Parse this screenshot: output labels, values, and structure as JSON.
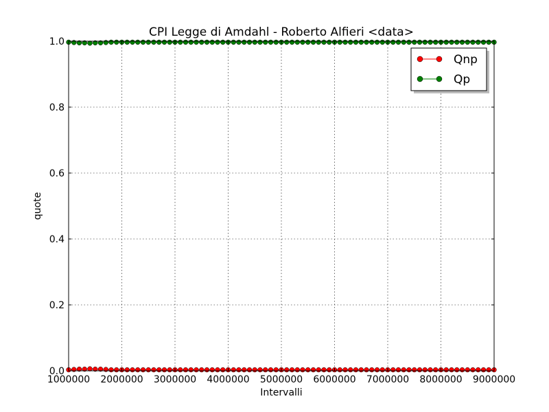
{
  "chart_data": {
    "type": "line",
    "title": "CPI  Legge di Amdahl  -   Roberto Alfieri  <data>",
    "xlabel": "Intervalli",
    "ylabel": "quote",
    "xlim": [
      1000000,
      9000000
    ],
    "ylim": [
      0.0,
      1.0
    ],
    "x_ticks": [
      1000000,
      2000000,
      3000000,
      4000000,
      5000000,
      6000000,
      7000000,
      8000000,
      9000000
    ],
    "x_tick_labels": [
      "1000000",
      "2000000",
      "3000000",
      "4000000",
      "5000000",
      "6000000",
      "7000000",
      "8000000",
      "9000000"
    ],
    "y_ticks": [
      0.0,
      0.2,
      0.4,
      0.6,
      0.8,
      1.0
    ],
    "y_tick_labels": [
      "0.0",
      "0.2",
      "0.4",
      "0.6",
      "0.8",
      "1.0"
    ],
    "grid": true,
    "legend_position": "top-right",
    "x": [
      1000000,
      1100000,
      1200000,
      1300000,
      1400000,
      1500000,
      1600000,
      1700000,
      1800000,
      1900000,
      2000000,
      2100000,
      2200000,
      2300000,
      2400000,
      2500000,
      2600000,
      2700000,
      2800000,
      2900000,
      3000000,
      3100000,
      3200000,
      3300000,
      3400000,
      3500000,
      3600000,
      3700000,
      3800000,
      3900000,
      4000000,
      4100000,
      4200000,
      4300000,
      4400000,
      4500000,
      4600000,
      4700000,
      4800000,
      4900000,
      5000000,
      5100000,
      5200000,
      5300000,
      5400000,
      5500000,
      5600000,
      5700000,
      5800000,
      5900000,
      6000000,
      6100000,
      6200000,
      6300000,
      6400000,
      6500000,
      6600000,
      6700000,
      6800000,
      6900000,
      7000000,
      7100000,
      7200000,
      7300000,
      7400000,
      7500000,
      7600000,
      7700000,
      7800000,
      7900000,
      8000000,
      8100000,
      8200000,
      8300000,
      8400000,
      8500000,
      8600000,
      8700000,
      8800000,
      8900000,
      9000000
    ],
    "series": [
      {
        "name": "Qnp",
        "color": "#ff0000",
        "values": [
          0.003,
          0.004,
          0.005,
          0.005,
          0.006,
          0.005,
          0.005,
          0.004,
          0.003,
          0.003,
          0.003,
          0.003,
          0.003,
          0.003,
          0.003,
          0.003,
          0.003,
          0.003,
          0.003,
          0.003,
          0.003,
          0.003,
          0.003,
          0.003,
          0.003,
          0.003,
          0.003,
          0.003,
          0.003,
          0.003,
          0.003,
          0.003,
          0.003,
          0.003,
          0.003,
          0.003,
          0.003,
          0.003,
          0.003,
          0.003,
          0.003,
          0.003,
          0.003,
          0.003,
          0.003,
          0.003,
          0.003,
          0.003,
          0.003,
          0.003,
          0.003,
          0.003,
          0.003,
          0.003,
          0.003,
          0.003,
          0.003,
          0.003,
          0.003,
          0.003,
          0.003,
          0.003,
          0.003,
          0.003,
          0.003,
          0.003,
          0.003,
          0.003,
          0.003,
          0.003,
          0.003,
          0.003,
          0.003,
          0.003,
          0.003,
          0.003,
          0.003,
          0.003,
          0.003,
          0.003,
          0.003
        ]
      },
      {
        "name": "Qp",
        "color": "#008000",
        "values": [
          0.997,
          0.996,
          0.995,
          0.995,
          0.994,
          0.995,
          0.995,
          0.996,
          0.997,
          0.997,
          0.997,
          0.997,
          0.997,
          0.997,
          0.997,
          0.997,
          0.997,
          0.997,
          0.997,
          0.997,
          0.997,
          0.997,
          0.997,
          0.997,
          0.997,
          0.997,
          0.997,
          0.997,
          0.997,
          0.997,
          0.997,
          0.997,
          0.997,
          0.997,
          0.997,
          0.997,
          0.997,
          0.997,
          0.997,
          0.997,
          0.997,
          0.997,
          0.997,
          0.997,
          0.997,
          0.997,
          0.997,
          0.997,
          0.997,
          0.997,
          0.997,
          0.997,
          0.997,
          0.997,
          0.997,
          0.997,
          0.997,
          0.997,
          0.997,
          0.997,
          0.997,
          0.997,
          0.997,
          0.997,
          0.997,
          0.997,
          0.997,
          0.997,
          0.997,
          0.997,
          0.997,
          0.997,
          0.997,
          0.997,
          0.997,
          0.997,
          0.997,
          0.997,
          0.997,
          0.997,
          0.997
        ]
      }
    ]
  }
}
